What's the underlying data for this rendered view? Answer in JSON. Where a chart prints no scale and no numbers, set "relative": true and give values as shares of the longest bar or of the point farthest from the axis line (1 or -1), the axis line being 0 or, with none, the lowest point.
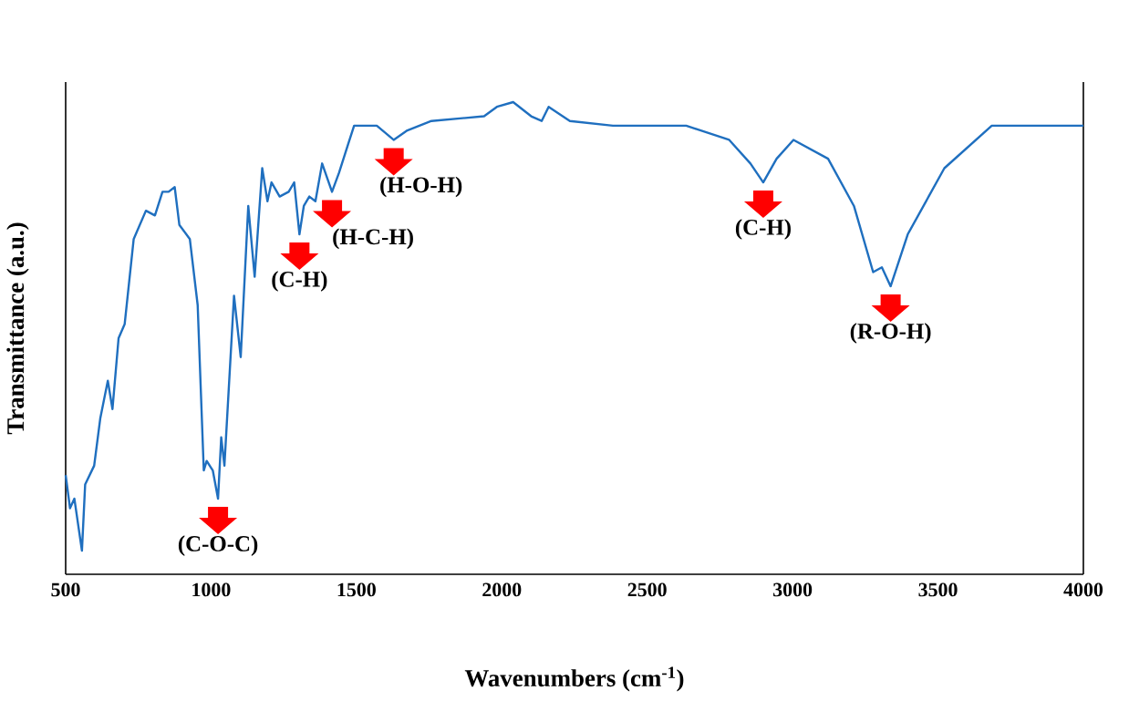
{
  "chart_data": {
    "type": "line",
    "xlabel": "Wavenumbers (cm$^{-1}$)",
    "ylabel": "Transmittance (a.u.)",
    "relative": true,
    "xlim": [
      500,
      4000
    ],
    "xticks": [
      500,
      1000,
      1500,
      2000,
      2500,
      3000,
      3500,
      4000
    ],
    "x": [
      500,
      515,
      530,
      556,
      567,
      598,
      619,
      645,
      661,
      682,
      703,
      734,
      776,
      807,
      833,
      854,
      875,
      891,
      927,
      954,
      975,
      985,
      1006,
      1024,
      1035,
      1046,
      1079,
      1102,
      1128,
      1150,
      1176,
      1194,
      1208,
      1236,
      1267,
      1286,
      1304,
      1319,
      1338,
      1359,
      1382,
      1416,
      1440,
      1471,
      1492,
      1570,
      1628,
      1675,
      1758,
      1939,
      1983,
      2039,
      2101,
      2137,
      2161,
      2234,
      2382,
      2634,
      2782,
      2855,
      2899,
      2945,
      3003,
      3122,
      3211,
      3277,
      3307,
      3337,
      3396,
      3522,
      3685,
      4000
    ],
    "series": [
      {
        "color": "#1f6fbf",
        "values": [
          0.21,
          0.14,
          0.16,
          0.05,
          0.19,
          0.23,
          0.33,
          0.41,
          0.35,
          0.5,
          0.53,
          0.71,
          0.77,
          0.76,
          0.81,
          0.81,
          0.82,
          0.74,
          0.71,
          0.57,
          0.22,
          0.24,
          0.22,
          0.16,
          0.29,
          0.23,
          0.59,
          0.46,
          0.78,
          0.63,
          0.86,
          0.79,
          0.83,
          0.8,
          0.81,
          0.83,
          0.72,
          0.78,
          0.8,
          0.79,
          0.87,
          0.81,
          0.85,
          0.91,
          0.95,
          0.95,
          0.92,
          0.94,
          0.96,
          0.97,
          0.99,
          1.0,
          0.97,
          0.96,
          0.99,
          0.96,
          0.95,
          0.95,
          0.92,
          0.87,
          0.83,
          0.88,
          0.92,
          0.88,
          0.78,
          0.64,
          0.65,
          0.61,
          0.72,
          0.86,
          0.95,
          0.95
        ]
      }
    ],
    "annotations": [
      {
        "text": "(C-O-C)",
        "x": 1024,
        "y": 0.16
      },
      {
        "text": "(C-H)",
        "x": 1304,
        "y": 0.72
      },
      {
        "text": "(H-C-H)",
        "x": 1416,
        "y": 0.81
      },
      {
        "text": "(H-O-H)",
        "x": 1628,
        "y": 0.92
      },
      {
        "text": "(C-H)",
        "x": 2899,
        "y": 0.83
      },
      {
        "text": "(R-O-H)",
        "x": 3337,
        "y": 0.61
      }
    ]
  }
}
